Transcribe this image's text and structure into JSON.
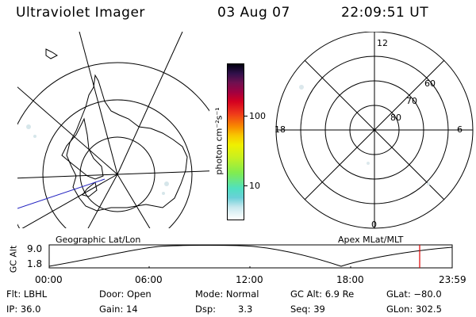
{
  "header": {
    "title": "Ultraviolet Imager",
    "date": "03 Aug 07",
    "time": "22:09:51 UT"
  },
  "left_panel": {
    "label": "Geographic Lat/Lon"
  },
  "right_panel": {
    "label": "Apex MLat/MLT",
    "mlt_labels": [
      "12",
      "18",
      "6",
      "0"
    ],
    "mlat_labels": [
      "60",
      "70",
      "80"
    ]
  },
  "colorbar": {
    "unit_label": "photon cm⁻²s⁻¹",
    "tick_labels": [
      "100",
      "10"
    ]
  },
  "timeline": {
    "ylabel": "GC Alt",
    "yticks": [
      "9.0",
      "1.8"
    ],
    "xticks": [
      "00:00",
      "06:00",
      "12:00",
      "18:00",
      "23:59"
    ],
    "current_marker_color": "#e00000"
  },
  "info": {
    "filter": "Flt: LBHL",
    "door": "Door: Open",
    "mode": "Mode: Normal",
    "gc_alt": "GC Alt: 6.9 Re",
    "glat": "GLat: −80.0",
    "ip": "IP: 36.0",
    "gain": "Gain: 14",
    "dsp_label": "Dsp:",
    "dsp_value": "3.3",
    "seq": "Seq: 39",
    "glon": "GLon: 302.5"
  }
}
